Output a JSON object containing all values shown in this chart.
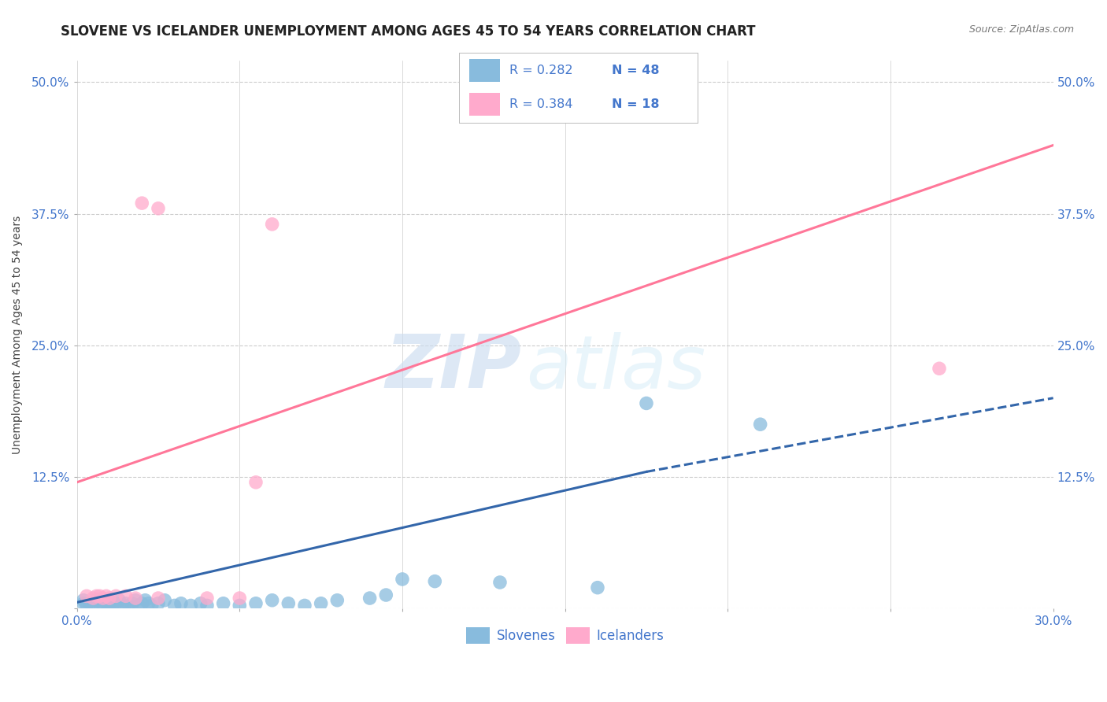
{
  "title": "SLOVENE VS ICELANDER UNEMPLOYMENT AMONG AGES 45 TO 54 YEARS CORRELATION CHART",
  "source": "Source: ZipAtlas.com",
  "ylabel": "Unemployment Among Ages 45 to 54 years",
  "xlim": [
    0.0,
    0.3
  ],
  "ylim": [
    0.0,
    0.52
  ],
  "xticks": [
    0.0,
    0.05,
    0.1,
    0.15,
    0.2,
    0.25,
    0.3
  ],
  "yticks": [
    0.0,
    0.125,
    0.25,
    0.375,
    0.5
  ],
  "ytick_labels": [
    "",
    "12.5%",
    "25.0%",
    "37.5%",
    "50.0%"
  ],
  "xtick_labels": [
    "0.0%",
    "",
    "",
    "",
    "",
    "",
    "30.0%"
  ],
  "legend_r_blue": "R = 0.282",
  "legend_n_blue": "N = 48",
  "legend_r_pink": "R = 0.384",
  "legend_n_pink": "N = 18",
  "blue_color": "#88BBDD",
  "pink_color": "#FFAACC",
  "blue_line_color": "#3366AA",
  "pink_line_color": "#FF7799",
  "blue_scatter": [
    [
      0.002,
      0.005
    ],
    [
      0.002,
      0.008
    ],
    [
      0.003,
      0.003
    ],
    [
      0.004,
      0.005
    ],
    [
      0.005,
      0.003
    ],
    [
      0.006,
      0.008
    ],
    [
      0.007,
      0.005
    ],
    [
      0.008,
      0.003
    ],
    [
      0.009,
      0.005
    ],
    [
      0.01,
      0.003
    ],
    [
      0.01,
      0.005
    ],
    [
      0.01,
      0.008
    ],
    [
      0.011,
      0.003
    ],
    [
      0.012,
      0.005
    ],
    [
      0.013,
      0.008
    ],
    [
      0.014,
      0.003
    ],
    [
      0.015,
      0.005
    ],
    [
      0.016,
      0.003
    ],
    [
      0.017,
      0.005
    ],
    [
      0.018,
      0.008
    ],
    [
      0.019,
      0.003
    ],
    [
      0.02,
      0.005
    ],
    [
      0.021,
      0.008
    ],
    [
      0.022,
      0.005
    ],
    [
      0.023,
      0.003
    ],
    [
      0.025,
      0.005
    ],
    [
      0.027,
      0.008
    ],
    [
      0.03,
      0.003
    ],
    [
      0.032,
      0.005
    ],
    [
      0.035,
      0.003
    ],
    [
      0.038,
      0.005
    ],
    [
      0.04,
      0.003
    ],
    [
      0.045,
      0.005
    ],
    [
      0.05,
      0.003
    ],
    [
      0.055,
      0.005
    ],
    [
      0.06,
      0.008
    ],
    [
      0.065,
      0.005
    ],
    [
      0.07,
      0.003
    ],
    [
      0.075,
      0.005
    ],
    [
      0.08,
      0.008
    ],
    [
      0.09,
      0.01
    ],
    [
      0.095,
      0.013
    ],
    [
      0.1,
      0.028
    ],
    [
      0.11,
      0.026
    ],
    [
      0.13,
      0.025
    ],
    [
      0.16,
      0.02
    ],
    [
      0.175,
      0.195
    ],
    [
      0.21,
      0.175
    ]
  ],
  "pink_scatter": [
    [
      0.003,
      0.012
    ],
    [
      0.005,
      0.01
    ],
    [
      0.006,
      0.012
    ],
    [
      0.007,
      0.012
    ],
    [
      0.008,
      0.01
    ],
    [
      0.009,
      0.012
    ],
    [
      0.01,
      0.01
    ],
    [
      0.012,
      0.012
    ],
    [
      0.015,
      0.012
    ],
    [
      0.018,
      0.01
    ],
    [
      0.02,
      0.385
    ],
    [
      0.025,
      0.01
    ],
    [
      0.025,
      0.38
    ],
    [
      0.04,
      0.01
    ],
    [
      0.05,
      0.01
    ],
    [
      0.055,
      0.12
    ],
    [
      0.06,
      0.365
    ],
    [
      0.265,
      0.228
    ]
  ],
  "blue_line": [
    [
      0.0,
      0.006
    ],
    [
      0.175,
      0.13
    ]
  ],
  "blue_dashed_line": [
    [
      0.175,
      0.13
    ],
    [
      0.3,
      0.2
    ]
  ],
  "pink_line": [
    [
      0.0,
      0.12
    ],
    [
      0.3,
      0.44
    ]
  ],
  "wm_zip": "ZIP",
  "wm_atlas": "atlas",
  "background_color": "#FFFFFF",
  "grid_color": "#CCCCCC",
  "title_fontsize": 12,
  "axis_fontsize": 10,
  "tick_fontsize": 11,
  "legend_fontsize": 12
}
